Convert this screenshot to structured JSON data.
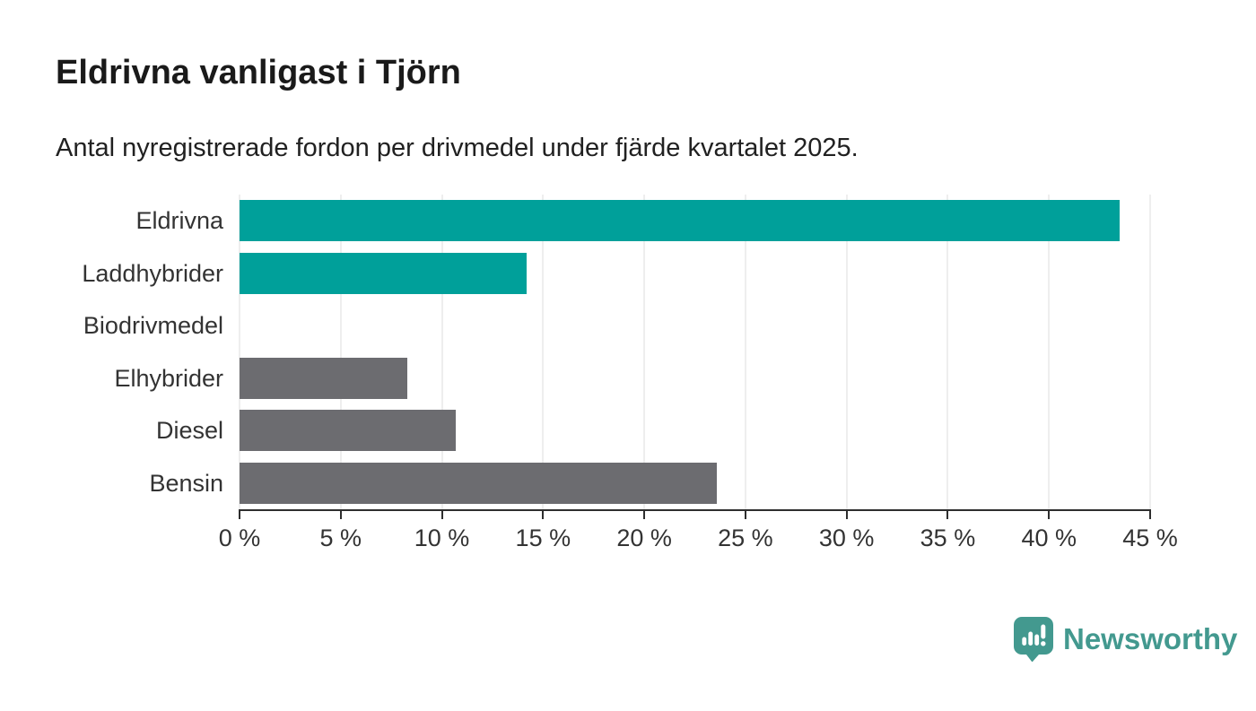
{
  "header": {
    "title": "Eldrivna vanligast i Tjörn",
    "subtitle": "Antal nyregistrerade fordon per drivmedel under fjärde kvartalet 2025."
  },
  "chart_data": {
    "type": "bar",
    "orientation": "horizontal",
    "title": "Eldrivna vanligast i Tjörn",
    "subtitle": "Antal nyregistrerade fordon per drivmedel under fjärde kvartalet 2025.",
    "categories": [
      "Eldrivna",
      "Laddhybrider",
      "Biodrivmedel",
      "Elhybrider",
      "Diesel",
      "Bensin"
    ],
    "values": [
      43.5,
      14.2,
      0,
      8.3,
      10.7,
      23.6
    ],
    "unit": "%",
    "xlabel": "",
    "ylabel": "",
    "xlim": [
      0,
      45
    ],
    "xticks": [
      0,
      5,
      10,
      15,
      20,
      25,
      30,
      35,
      40,
      45
    ],
    "xtick_labels": [
      "0 %",
      "5 %",
      "10 %",
      "15 %",
      "20 %",
      "25 %",
      "30 %",
      "35 %",
      "40 %",
      "45 %"
    ],
    "bar_colors": [
      "#00a09a",
      "#00a09a",
      "#6c6c70",
      "#6c6c70",
      "#6c6c70",
      "#6c6c70"
    ],
    "highlight_color": "#00a09a",
    "default_color": "#6c6c70",
    "grid": "vertical",
    "gridline_color": "#dcdcdc",
    "axis_color": "#2e2e2e",
    "label_color": "#333333",
    "legend": "none"
  },
  "footer": {
    "brand": "Newsworthy",
    "brand_color": "#43998f",
    "logo_icon": "speech-bubble-bar-chart-exclamation"
  }
}
